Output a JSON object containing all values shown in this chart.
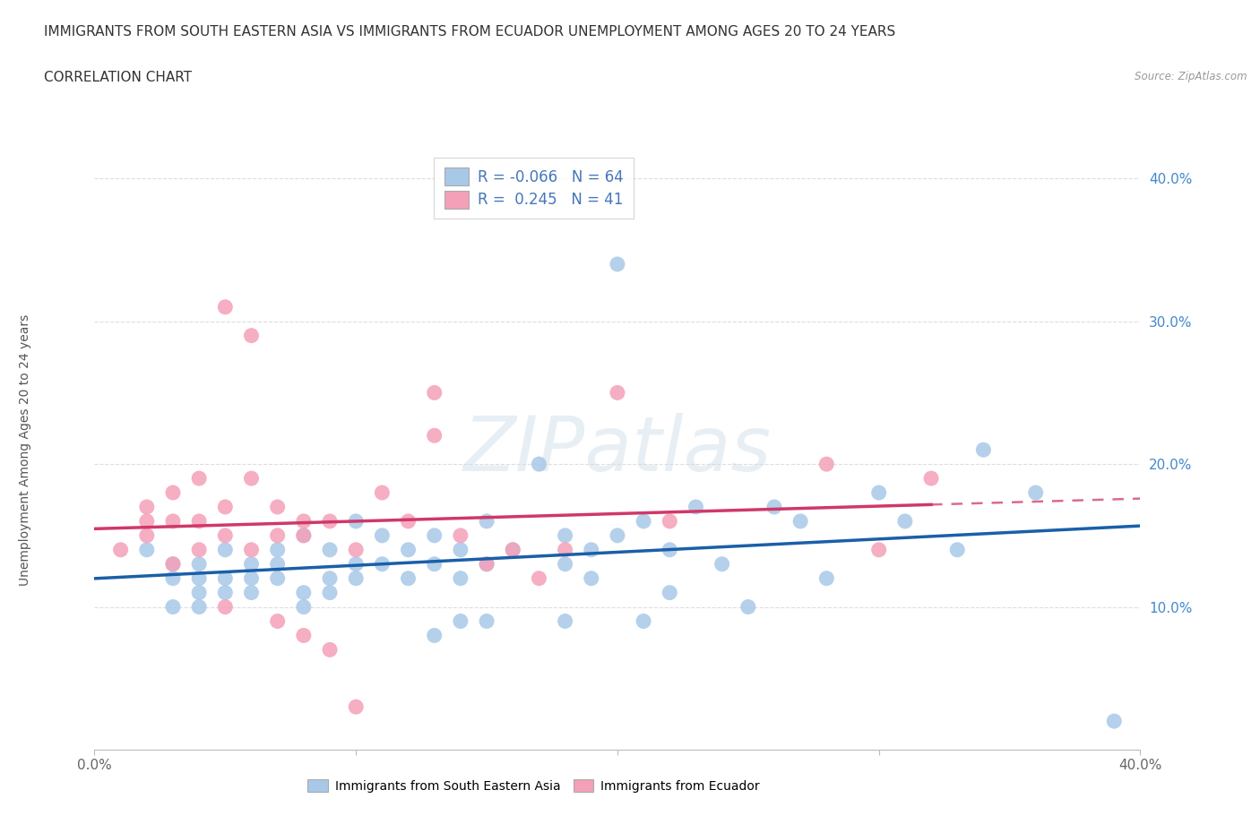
{
  "title_line1": "IMMIGRANTS FROM SOUTH EASTERN ASIA VS IMMIGRANTS FROM ECUADOR UNEMPLOYMENT AMONG AGES 20 TO 24 YEARS",
  "title_line2": "CORRELATION CHART",
  "source": "Source: ZipAtlas.com",
  "ylabel": "Unemployment Among Ages 20 to 24 years",
  "xlim": [
    0.0,
    0.4
  ],
  "ylim": [
    0.0,
    0.42
  ],
  "blue_R": -0.066,
  "blue_N": 64,
  "pink_R": 0.245,
  "pink_N": 41,
  "blue_color": "#a8c8e8",
  "blue_line_color": "#1a5fa8",
  "pink_color": "#f4a0b8",
  "pink_line_color": "#d03868",
  "blue_scatter": [
    [
      0.02,
      0.14
    ],
    [
      0.03,
      0.12
    ],
    [
      0.03,
      0.1
    ],
    [
      0.03,
      0.13
    ],
    [
      0.04,
      0.11
    ],
    [
      0.04,
      0.12
    ],
    [
      0.04,
      0.13
    ],
    [
      0.04,
      0.1
    ],
    [
      0.05,
      0.14
    ],
    [
      0.05,
      0.12
    ],
    [
      0.05,
      0.11
    ],
    [
      0.06,
      0.13
    ],
    [
      0.06,
      0.12
    ],
    [
      0.06,
      0.11
    ],
    [
      0.07,
      0.14
    ],
    [
      0.07,
      0.13
    ],
    [
      0.07,
      0.12
    ],
    [
      0.08,
      0.15
    ],
    [
      0.08,
      0.11
    ],
    [
      0.08,
      0.1
    ],
    [
      0.09,
      0.14
    ],
    [
      0.09,
      0.12
    ],
    [
      0.09,
      0.11
    ],
    [
      0.1,
      0.16
    ],
    [
      0.1,
      0.13
    ],
    [
      0.1,
      0.12
    ],
    [
      0.11,
      0.15
    ],
    [
      0.11,
      0.13
    ],
    [
      0.12,
      0.14
    ],
    [
      0.12,
      0.12
    ],
    [
      0.13,
      0.15
    ],
    [
      0.13,
      0.13
    ],
    [
      0.13,
      0.08
    ],
    [
      0.14,
      0.14
    ],
    [
      0.14,
      0.12
    ],
    [
      0.14,
      0.09
    ],
    [
      0.15,
      0.16
    ],
    [
      0.15,
      0.13
    ],
    [
      0.15,
      0.09
    ],
    [
      0.16,
      0.14
    ],
    [
      0.17,
      0.2
    ],
    [
      0.18,
      0.15
    ],
    [
      0.18,
      0.13
    ],
    [
      0.18,
      0.09
    ],
    [
      0.19,
      0.14
    ],
    [
      0.19,
      0.12
    ],
    [
      0.2,
      0.15
    ],
    [
      0.2,
      0.34
    ],
    [
      0.21,
      0.16
    ],
    [
      0.21,
      0.09
    ],
    [
      0.22,
      0.14
    ],
    [
      0.22,
      0.11
    ],
    [
      0.23,
      0.17
    ],
    [
      0.24,
      0.13
    ],
    [
      0.25,
      0.1
    ],
    [
      0.26,
      0.17
    ],
    [
      0.27,
      0.16
    ],
    [
      0.28,
      0.12
    ],
    [
      0.3,
      0.18
    ],
    [
      0.31,
      0.16
    ],
    [
      0.33,
      0.14
    ],
    [
      0.34,
      0.21
    ],
    [
      0.36,
      0.18
    ],
    [
      0.39,
      0.02
    ]
  ],
  "pink_scatter": [
    [
      0.01,
      0.14
    ],
    [
      0.02,
      0.15
    ],
    [
      0.02,
      0.17
    ],
    [
      0.02,
      0.16
    ],
    [
      0.03,
      0.18
    ],
    [
      0.03,
      0.16
    ],
    [
      0.03,
      0.13
    ],
    [
      0.04,
      0.19
    ],
    [
      0.04,
      0.16
    ],
    [
      0.04,
      0.14
    ],
    [
      0.05,
      0.17
    ],
    [
      0.05,
      0.15
    ],
    [
      0.05,
      0.1
    ],
    [
      0.05,
      0.31
    ],
    [
      0.06,
      0.29
    ],
    [
      0.06,
      0.19
    ],
    [
      0.06,
      0.14
    ],
    [
      0.07,
      0.17
    ],
    [
      0.07,
      0.15
    ],
    [
      0.07,
      0.09
    ],
    [
      0.08,
      0.16
    ],
    [
      0.08,
      0.15
    ],
    [
      0.08,
      0.08
    ],
    [
      0.09,
      0.16
    ],
    [
      0.09,
      0.07
    ],
    [
      0.1,
      0.14
    ],
    [
      0.1,
      0.03
    ],
    [
      0.11,
      0.18
    ],
    [
      0.12,
      0.16
    ],
    [
      0.13,
      0.25
    ],
    [
      0.13,
      0.22
    ],
    [
      0.14,
      0.15
    ],
    [
      0.15,
      0.13
    ],
    [
      0.16,
      0.14
    ],
    [
      0.17,
      0.12
    ],
    [
      0.18,
      0.14
    ],
    [
      0.2,
      0.25
    ],
    [
      0.22,
      0.16
    ],
    [
      0.28,
      0.2
    ],
    [
      0.3,
      0.14
    ],
    [
      0.32,
      0.19
    ]
  ],
  "watermark": "ZIPatlas",
  "background_color": "#ffffff",
  "grid_color": "#dddddd",
  "title_fontsize": 11,
  "axis_label_fontsize": 10,
  "tick_fontsize": 11,
  "legend_fontsize": 12
}
